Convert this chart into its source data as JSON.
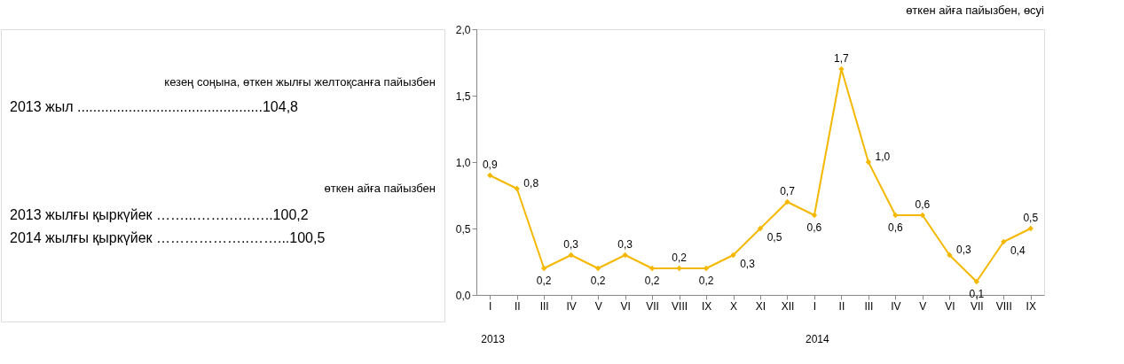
{
  "chart_data": {
    "type": "line",
    "title": "өткен айға пайызбен, өсуі",
    "categories": [
      "I",
      "II",
      "III",
      "IV",
      "V",
      "VI",
      "VII",
      "VIII",
      "IX",
      "X",
      "XI",
      "XII",
      "I",
      "II",
      "III",
      "IV",
      "V",
      "VI",
      "VII",
      "VIII",
      "IX"
    ],
    "series": [
      {
        "color": "#f5b800",
        "values": [
          0.9,
          0.8,
          0.2,
          0.3,
          0.2,
          0.3,
          0.2,
          0.2,
          0.2,
          0.3,
          0.5,
          0.7,
          0.6,
          1.7,
          1.0,
          0.6,
          0.6,
          0.3,
          0.1,
          0.4,
          0.5
        ],
        "value_labels": [
          "0,9",
          "0,8",
          "0,2",
          "0,3",
          "0,2",
          "0,3",
          "0,2",
          "0,2",
          "0,2",
          "0,3",
          "0,5",
          "0,7",
          "0,6",
          "1,7",
          "1,0",
          "0,6",
          "0,6",
          "0,3",
          "0,1",
          "0,4",
          "0,5"
        ]
      }
    ],
    "ylim": [
      0,
      2
    ],
    "yticks": [
      {
        "value": 0,
        "label": "0,0"
      },
      {
        "value": 0.5,
        "label": "0,5"
      },
      {
        "value": 1,
        "label": "1,0"
      },
      {
        "value": 1.5,
        "label": "1,5"
      },
      {
        "value": 2,
        "label": "2,0"
      }
    ],
    "marker": "diamond",
    "line_style": "solid",
    "grid": false,
    "annotations": [
      "кезең соңына, өткен жылғы желтоқсанға пайызбен",
      "2013  жыл  ...............................................104,8",
      "өткен айға пайызбен",
      "2013 жылғы қыркүйек        ……...…….…..…..100,2",
      "2014 жылғы қыркүйек        ………………..……...100,5",
      "2013",
      "2014"
    ]
  }
}
